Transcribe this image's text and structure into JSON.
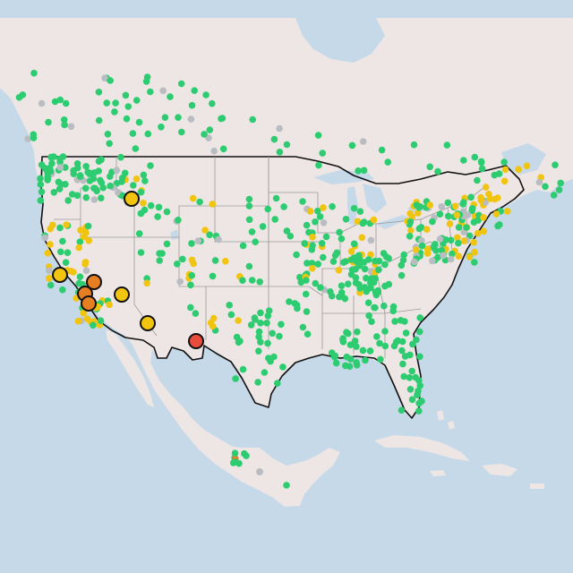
{
  "map": {
    "view": "contiguous-united-states-air-quality-sensors",
    "basemap_colors": {
      "water": "#c6d9e9",
      "land": "#ede6e5",
      "mountain_shade": "#ddd7d6"
    },
    "legend_visible": false,
    "category_colors": {
      "good": "#2ecc71",
      "moderate": "#f1c40f",
      "unhealthy_sensitive": "#e67e22",
      "unhealthy": "#e74c3c",
      "no_data": "#b9bcc0"
    },
    "large_marker_counts": {
      "moderate": 4,
      "unhealthy_sensitive": 3,
      "unhealthy": 1
    }
  }
}
